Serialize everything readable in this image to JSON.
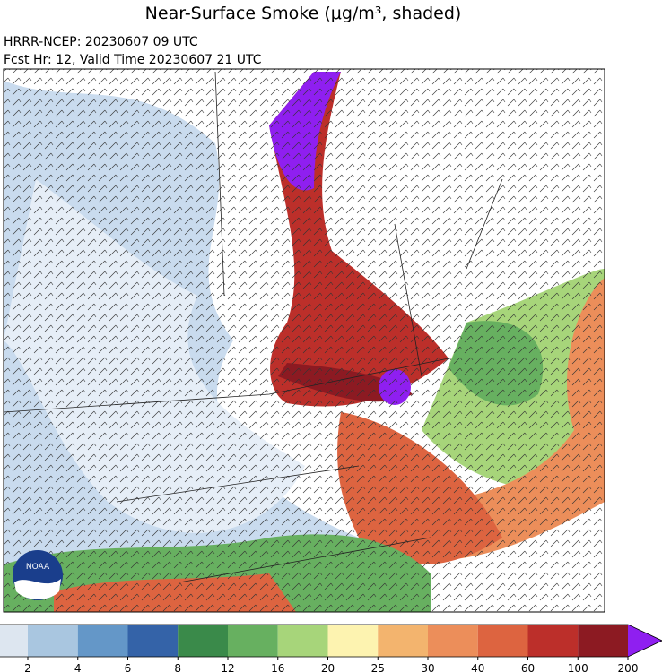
{
  "title": "Near-Surface Smoke (μg/m³, shaded)",
  "header": {
    "model_line": "HRRR-NCEP: 20230607 09 UTC",
    "valid_line": "Fcst Hr: 12, Valid Time 20230607 21 UTC"
  },
  "logo": {
    "label": "NOAA"
  },
  "colorbar": {
    "colors": [
      "#dde6f0",
      "#a9c6e0",
      "#6497c8",
      "#3463a8",
      "#3a8a4a",
      "#67b060",
      "#a7d57a",
      "#fdf3b0",
      "#f3b46e",
      "#ec8e5a",
      "#dd6440",
      "#bc2f2a",
      "#8c1a22",
      "#8f1ff0"
    ],
    "ticks": [
      2,
      4,
      6,
      8,
      12,
      16,
      20,
      25,
      30,
      40,
      60,
      100,
      200
    ]
  }
}
